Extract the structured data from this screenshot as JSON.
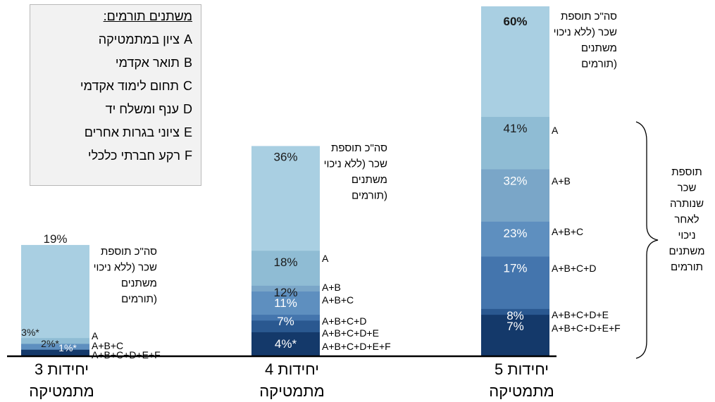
{
  "legend": {
    "title": "משתנים תורמים:",
    "items": [
      {
        "key": "A",
        "label": "ציון במתמטיקה"
      },
      {
        "key": "B",
        "label": "תואר אקדמי"
      },
      {
        "key": "C",
        "label": "תחום לימוד אקדמי"
      },
      {
        "key": "D",
        "label": "ענף ומשלח יד"
      },
      {
        "key": "E",
        "label": "ציוני בגרות אחרים"
      },
      {
        "key": "F",
        "label": "רקע חברתי כלכלי"
      }
    ]
  },
  "brace_label": [
    "תוספת",
    "שכר",
    "שנותרה",
    "לאחר",
    "ניכוי",
    "משתנים",
    "תורמים"
  ],
  "colors": {
    "total": "#a9cfe2",
    "A": "#8fbcd4",
    "A+B": "#7aa6c8",
    "A+B+C": "#5e8fbf",
    "A+B+C+D": "#4475ad",
    "A+B+C+D+E": "#2a5890",
    "A+B+C+D+E+F": "#14396a"
  },
  "chart_data": {
    "type": "bar",
    "stacking": "overlaid",
    "ylim": [
      0,
      60
    ],
    "series_keys": [
      "total",
      "A",
      "A+B",
      "A+B+C",
      "A+B+C+D",
      "A+B+C+D+E",
      "A+B+C+D+E+F"
    ],
    "categories": [
      {
        "name": "3 יחידות מתמטיקה",
        "total_note": [
          "סה\"כ תוספת",
          "שכר (ללא ניכוי",
          "משתנים",
          "תורמים)"
        ],
        "segments": [
          {
            "key": "total",
            "value": 19,
            "label": "19%",
            "combo": ""
          },
          {
            "key": "A",
            "value": 3,
            "label": "3%*",
            "combo": "A"
          },
          {
            "key": "A+B+C",
            "value": 2,
            "label": "2%*",
            "combo": "A+B+C"
          },
          {
            "key": "A+B+C+D+E+F",
            "value": 1,
            "label": "1%*",
            "combo": "A+B+C+D+E+F"
          }
        ]
      },
      {
        "name": "4 יחידות מתמטיקה",
        "total_note": [
          "סה\"כ תוספת",
          "שכר (ללא ניכוי",
          "משתנים",
          "תורמים)"
        ],
        "segments": [
          {
            "key": "total",
            "value": 36,
            "label": "36%",
            "combo": ""
          },
          {
            "key": "A",
            "value": 18,
            "label": "18%",
            "combo": "A"
          },
          {
            "key": "A+B",
            "value": 12,
            "label": "12%",
            "combo": "A+B"
          },
          {
            "key": "A+B+C",
            "value": 11,
            "label": "11%",
            "combo": "A+B+C"
          },
          {
            "key": "A+B+C+D",
            "value": 7,
            "label": "7%",
            "combo": "A+B+C+D"
          },
          {
            "key": "A+B+C+D+E",
            "value": 6,
            "label": "",
            "combo": "A+B+C+D+E"
          },
          {
            "key": "A+B+C+D+E+F",
            "value": 4,
            "label": "4%*",
            "combo": "A+B+C+D+E+F"
          }
        ]
      },
      {
        "name": "5 יחידות מתמטיקה",
        "total_note": [
          "סה\"כ תוספת",
          "שכר (ללא ניכוי",
          "משתנים",
          "תורמים)"
        ],
        "segments": [
          {
            "key": "total",
            "value": 60,
            "label": "60%",
            "combo": ""
          },
          {
            "key": "A",
            "value": 41,
            "label": "41%",
            "combo": "A"
          },
          {
            "key": "A+B",
            "value": 32,
            "label": "32%",
            "combo": "A+B"
          },
          {
            "key": "A+B+C",
            "value": 23,
            "label": "23%",
            "combo": "A+B+C"
          },
          {
            "key": "A+B+C+D",
            "value": 17,
            "label": "17%",
            "combo": "A+B+C+D"
          },
          {
            "key": "A+B+C+D+E",
            "value": 8,
            "label": "8%",
            "combo": "A+B+C+D+E"
          },
          {
            "key": "A+B+C+D+E+F",
            "value": 7,
            "label": "7%",
            "combo": "A+B+C+D+E+F"
          }
        ]
      }
    ]
  }
}
